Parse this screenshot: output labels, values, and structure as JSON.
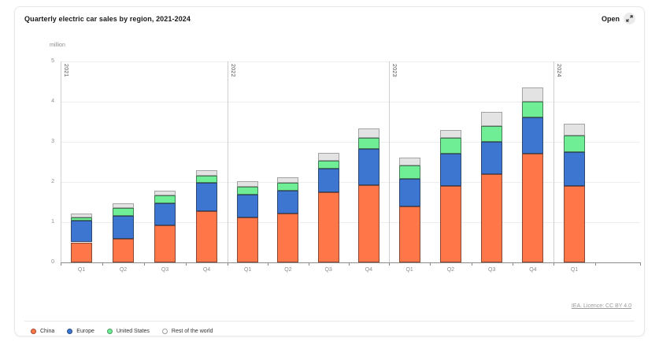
{
  "card": {
    "title": "Quarterly electric car sales by region, 2021-2024",
    "open_label": "Open",
    "footer_link": "IEA. Licence: CC BY 4.0"
  },
  "chart_data": {
    "type": "bar",
    "stacked": true,
    "title": "Quarterly electric car sales by region, 2021-2024",
    "unit_label": "million",
    "ylabel": "million",
    "ylim": [
      0,
      5
    ],
    "yticks": [
      0,
      1,
      2,
      3,
      4,
      5
    ],
    "grid": true,
    "legend_position": "bottom",
    "groups": [
      {
        "year": "2021",
        "quarters": [
          "Q1",
          "Q2",
          "Q3",
          "Q4"
        ]
      },
      {
        "year": "2022",
        "quarters": [
          "Q1",
          "Q2",
          "Q3",
          "Q4"
        ]
      },
      {
        "year": "2023",
        "quarters": [
          "Q1",
          "Q2",
          "Q3",
          "Q4"
        ]
      },
      {
        "year": "2024",
        "quarters": [
          "Q1"
        ]
      }
    ],
    "categories": [
      "2021 Q1",
      "2021 Q2",
      "2021 Q3",
      "2021 Q4",
      "2022 Q1",
      "2022 Q2",
      "2022 Q3",
      "2022 Q4",
      "2023 Q1",
      "2023 Q2",
      "2023 Q3",
      "2023 Q4",
      "2024 Q1"
    ],
    "series": [
      {
        "name": "China",
        "color": "#ff7648",
        "values": [
          0.5,
          0.58,
          0.93,
          1.28,
          1.11,
          1.21,
          1.75,
          1.92,
          1.4,
          1.9,
          2.2,
          2.7,
          1.9
        ]
      },
      {
        "name": "Europe",
        "color": "#3d76d0",
        "values": [
          0.53,
          0.58,
          0.55,
          0.7,
          0.58,
          0.58,
          0.58,
          0.9,
          0.68,
          0.8,
          0.8,
          0.9,
          0.85
        ]
      },
      {
        "name": "United States",
        "color": "#6fee96",
        "values": [
          0.08,
          0.19,
          0.18,
          0.17,
          0.19,
          0.2,
          0.2,
          0.28,
          0.33,
          0.4,
          0.4,
          0.4,
          0.4
        ]
      },
      {
        "name": "Rest of the world",
        "color": "#e3e3e3",
        "values": [
          0.1,
          0.12,
          0.13,
          0.15,
          0.13,
          0.13,
          0.2,
          0.23,
          0.2,
          0.2,
          0.35,
          0.35,
          0.3
        ]
      }
    ],
    "totals": [
      1.21,
      1.47,
      1.79,
      2.3,
      2.01,
      2.12,
      2.73,
      3.33,
      2.61,
      3.3,
      3.75,
      4.35,
      3.45
    ]
  }
}
